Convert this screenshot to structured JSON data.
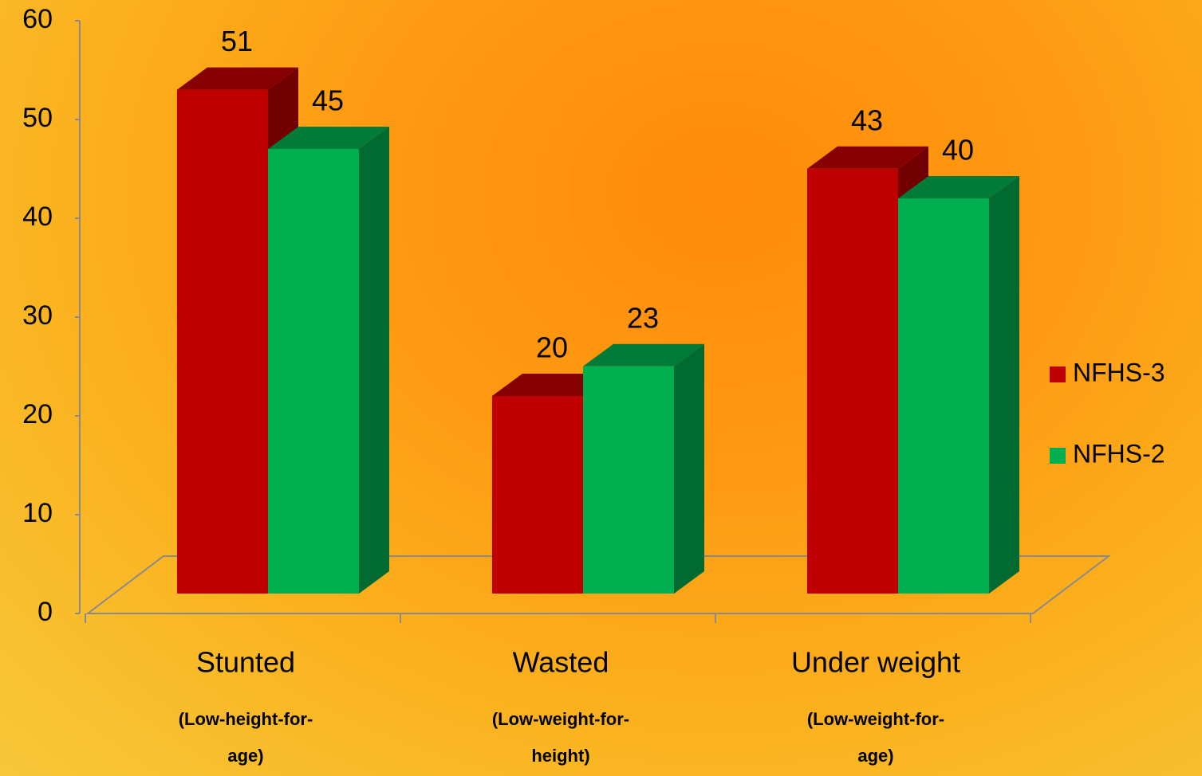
{
  "chart_data": {
    "type": "bar3d",
    "categories": [
      "Stunted",
      "Wasted",
      "Under weight"
    ],
    "category_notes": [
      "(Low-height-for-age)",
      "(Low-weight-for-height)",
      "(Low-weight-for- age)"
    ],
    "series": [
      {
        "name": "NFHS-3",
        "color": "#c00000",
        "values": [
          51,
          20,
          43
        ]
      },
      {
        "name": "NFHS-2",
        "color": "#00b050",
        "values": [
          45,
          23,
          40
        ]
      }
    ],
    "ylim": [
      0,
      60
    ],
    "yticks": [
      0,
      10,
      20,
      30,
      40,
      50,
      60
    ],
    "legend": "right"
  }
}
